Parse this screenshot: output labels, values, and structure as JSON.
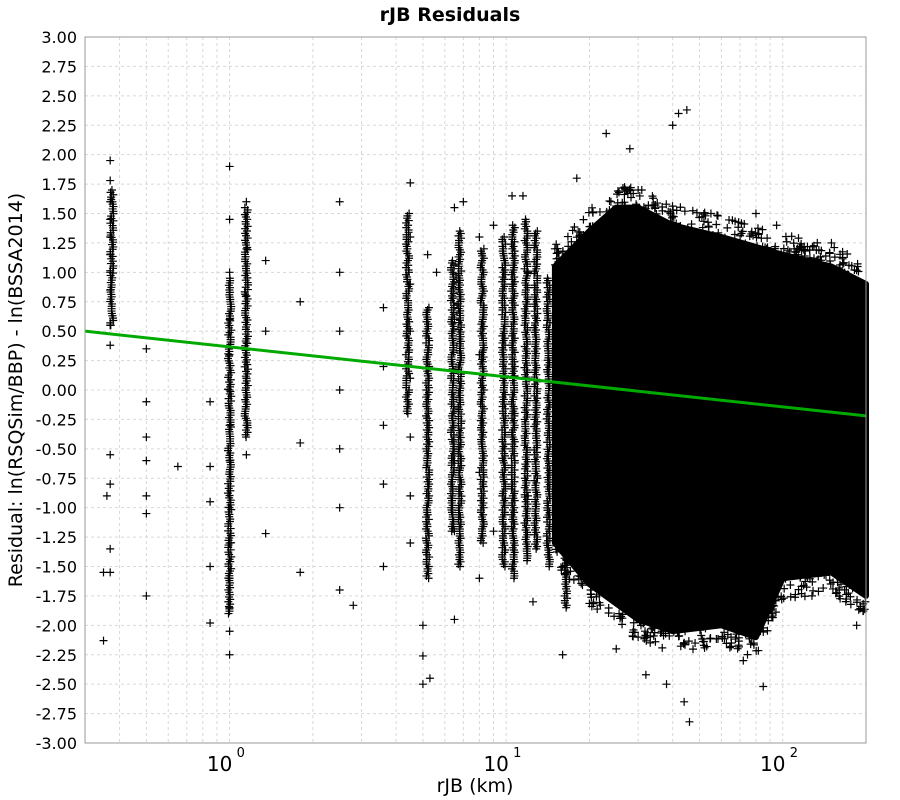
{
  "chart_data": {
    "type": "scatter",
    "title": "rJB Residuals",
    "xlabel": "rJB (km)",
    "ylabel": "Residual: ln(RSQSim/BBP) - ln(BSSA2014)",
    "x_scale": "log",
    "xlim": [
      0.3,
      200
    ],
    "ylim": [
      -3.0,
      3.0
    ],
    "grid": true,
    "x_ticks": [
      {
        "base": "10",
        "exp": "0",
        "value": 1
      },
      {
        "base": "10",
        "exp": "1",
        "value": 10
      },
      {
        "base": "10",
        "exp": "2",
        "value": 100
      }
    ],
    "y_ticks": [
      "3.00",
      "2.75",
      "2.50",
      "2.25",
      "2.00",
      "1.75",
      "1.50",
      "1.25",
      "1.00",
      "0.75",
      "0.50",
      "0.25",
      "0.00",
      "-0.25",
      "-0.50",
      "-0.75",
      "-1.00",
      "-1.25",
      "-1.50",
      "-1.75",
      "-2.00",
      "-2.25",
      "-2.50",
      "-2.75",
      "-3.00"
    ],
    "series": [
      {
        "type": "scatter",
        "marker": "+",
        "color": "#000000",
        "points": [
          [
            0.37,
            1.95
          ],
          [
            0.37,
            1.78
          ],
          [
            0.37,
            1.6
          ],
          [
            0.37,
            1.45
          ],
          [
            0.37,
            1.3
          ],
          [
            0.37,
            1.15
          ],
          [
            0.37,
            1.0
          ],
          [
            0.37,
            0.85
          ],
          [
            0.37,
            0.55
          ],
          [
            0.37,
            0.38
          ],
          [
            0.37,
            -0.55
          ],
          [
            0.37,
            -0.8
          ],
          [
            0.37,
            -1.35
          ],
          [
            0.37,
            -1.55
          ],
          [
            0.36,
            -0.9
          ],
          [
            0.35,
            -2.13
          ],
          [
            0.35,
            -1.55
          ],
          [
            0.5,
            0.35
          ],
          [
            0.5,
            -0.1
          ],
          [
            0.5,
            -0.4
          ],
          [
            0.5,
            -0.6
          ],
          [
            0.5,
            -0.9
          ],
          [
            0.5,
            -1.05
          ],
          [
            0.5,
            -1.75
          ],
          [
            0.65,
            -0.65
          ],
          [
            0.85,
            -0.1
          ],
          [
            0.85,
            -0.65
          ],
          [
            0.85,
            -0.95
          ],
          [
            0.85,
            -1.5
          ],
          [
            0.85,
            -1.98
          ],
          [
            1.0,
            1.9
          ],
          [
            1.0,
            1.45
          ],
          [
            1.0,
            1.0
          ],
          [
            1.0,
            0.6
          ],
          [
            1.0,
            0.3
          ],
          [
            1.0,
            0.0
          ],
          [
            1.0,
            -0.3
          ],
          [
            1.0,
            -0.6
          ],
          [
            1.0,
            -1.0
          ],
          [
            1.0,
            -1.3
          ],
          [
            1.0,
            -1.6
          ],
          [
            1.0,
            -1.85
          ],
          [
            1.0,
            -2.05
          ],
          [
            1.0,
            -2.25
          ],
          [
            1.15,
            1.6
          ],
          [
            1.15,
            1.2
          ],
          [
            1.15,
            0.8
          ],
          [
            1.15,
            0.4
          ],
          [
            1.15,
            0.1
          ],
          [
            1.15,
            -0.3
          ],
          [
            1.15,
            -0.55
          ],
          [
            1.35,
            1.1
          ],
          [
            1.35,
            0.5
          ],
          [
            1.35,
            -1.22
          ],
          [
            1.8,
            0.75
          ],
          [
            1.8,
            -0.45
          ],
          [
            1.8,
            -1.55
          ],
          [
            2.5,
            1.6
          ],
          [
            2.5,
            1.0
          ],
          [
            2.5,
            0.5
          ],
          [
            2.5,
            0.0
          ],
          [
            2.5,
            -0.5
          ],
          [
            2.5,
            -1.0
          ],
          [
            2.5,
            -1.7
          ],
          [
            2.8,
            -1.83
          ],
          [
            3.6,
            0.7
          ],
          [
            3.6,
            0.2
          ],
          [
            3.6,
            -0.3
          ],
          [
            3.6,
            -0.8
          ],
          [
            3.6,
            -1.5
          ],
          [
            4.5,
            1.76
          ],
          [
            4.5,
            1.3
          ],
          [
            4.5,
            0.9
          ],
          [
            4.5,
            0.5
          ],
          [
            4.5,
            0.1
          ],
          [
            4.5,
            -0.4
          ],
          [
            4.5,
            -0.9
          ],
          [
            4.5,
            -1.3
          ],
          [
            5.0,
            -2.0
          ],
          [
            5.0,
            -2.26
          ],
          [
            5.0,
            -2.5
          ],
          [
            5.3,
            -2.45
          ],
          [
            5.2,
            1.15
          ],
          [
            5.6,
            1.0
          ],
          [
            6.5,
            1.55
          ],
          [
            6.5,
            0.6
          ],
          [
            6.5,
            -0.6
          ],
          [
            6.5,
            -1.2
          ],
          [
            6.5,
            -1.95
          ],
          [
            7.0,
            1.6
          ],
          [
            8.0,
            1.3
          ],
          [
            8.0,
            0.3
          ],
          [
            8.0,
            -0.7
          ],
          [
            8.0,
            -1.6
          ],
          [
            9.0,
            1.4
          ],
          [
            9.0,
            -1.2
          ],
          [
            10.5,
            1.65
          ],
          [
            10.5,
            0.9
          ],
          [
            10.5,
            -0.2
          ],
          [
            10.5,
            -1.1
          ],
          [
            11.5,
            1.65
          ],
          [
            12.0,
            1.0
          ],
          [
            12.0,
            -0.9
          ],
          [
            12.5,
            -1.8
          ],
          [
            15,
            1.2
          ],
          [
            16,
            -1.5
          ],
          [
            16,
            -2.25
          ],
          [
            18,
            1.8
          ],
          [
            20,
            0.5
          ],
          [
            20,
            -1.6
          ],
          [
            23,
            2.18
          ],
          [
            25,
            1.3
          ],
          [
            25,
            -2.2
          ],
          [
            28,
            2.05
          ],
          [
            30,
            1.7
          ],
          [
            30,
            -2.1
          ],
          [
            32,
            -2.42
          ],
          [
            38,
            -2.5
          ],
          [
            40,
            2.25
          ],
          [
            42,
            2.35
          ],
          [
            44,
            -2.65
          ],
          [
            45,
            2.38
          ],
          [
            46,
            -2.82
          ],
          [
            55,
            1.5
          ],
          [
            60,
            1.2
          ],
          [
            65,
            -2.1
          ],
          [
            72,
            -2.3
          ],
          [
            80,
            1.5
          ],
          [
            85,
            -2.52
          ],
          [
            95,
            1.4
          ],
          [
            110,
            1.2
          ],
          [
            120,
            -1.2
          ],
          [
            150,
            1.25
          ],
          [
            160,
            -1.7
          ],
          [
            185,
            -2.0
          ]
        ],
        "dense_bands": [
          {
            "x": 0.375,
            "ymin": 0.55,
            "ymax": 1.7
          },
          {
            "x": 1.0,
            "ymin": -1.9,
            "ymax": 0.95
          },
          {
            "x": 1.15,
            "ymin": -0.4,
            "ymax": 1.55
          },
          {
            "x": 4.4,
            "ymin": -0.2,
            "ymax": 1.5
          },
          {
            "x": 5.2,
            "ymin": -1.6,
            "ymax": 0.7
          },
          {
            "x": 6.4,
            "ymin": -1.2,
            "ymax": 1.1
          },
          {
            "x": 6.8,
            "ymin": -1.5,
            "ymax": 1.35
          },
          {
            "x": 8.2,
            "ymin": -1.3,
            "ymax": 1.2
          },
          {
            "x": 9.8,
            "ymin": -1.5,
            "ymax": 1.3
          },
          {
            "x": 10.6,
            "ymin": -1.6,
            "ymax": 1.4
          },
          {
            "x": 11.8,
            "ymin": -1.45,
            "ymax": 1.45
          },
          {
            "x": 12.8,
            "ymin": -1.35,
            "ymax": 1.35
          },
          {
            "x": 14.2,
            "ymin": -1.5,
            "ymax": 0.95
          },
          {
            "x": 16.5,
            "ymin": -1.85,
            "ymax": 1.15
          }
        ],
        "dense_region": {
          "x_start": 15,
          "x_end": 200,
          "upper": [
            [
              15,
              1.05
            ],
            [
              20,
              1.35
            ],
            [
              25,
              1.55
            ],
            [
              30,
              1.55
            ],
            [
              40,
              1.4
            ],
            [
              60,
              1.3
            ],
            [
              100,
              1.15
            ],
            [
              150,
              1.05
            ],
            [
              200,
              0.9
            ]
          ],
          "lower": [
            [
              15,
              -1.3
            ],
            [
              20,
              -1.65
            ],
            [
              30,
              -1.95
            ],
            [
              40,
              -2.05
            ],
            [
              60,
              -2.0
            ],
            [
              80,
              -2.1
            ],
            [
              100,
              -1.6
            ],
            [
              150,
              -1.55
            ],
            [
              200,
              -1.75
            ]
          ]
        }
      },
      {
        "type": "line",
        "color": "#00aa00",
        "points": [
          [
            0.3,
            0.5
          ],
          [
            200,
            -0.22
          ]
        ]
      }
    ]
  }
}
